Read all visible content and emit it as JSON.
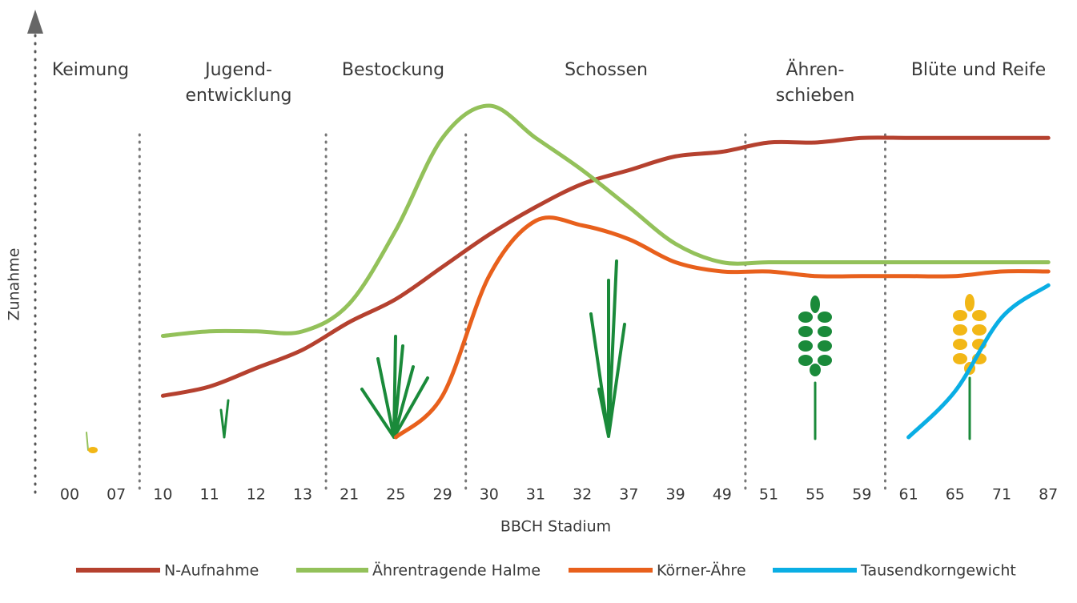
{
  "chart_data": {
    "type": "line",
    "y_label": "Zunahme",
    "x_label": "BBCH Stadium",
    "stages": [
      [
        "Keimung"
      ],
      [
        "Jugend-",
        "entwicklung"
      ],
      [
        "Bestockung"
      ],
      [
        "Schossen"
      ],
      [
        "Ähren-",
        "schieben"
      ],
      [
        "Blüte und Reife"
      ]
    ],
    "categories": [
      "00",
      "07",
      "10",
      "11",
      "12",
      "13",
      "21",
      "25",
      "29",
      "30",
      "31",
      "32",
      "37",
      "39",
      "49",
      "51",
      "55",
      "59",
      "61",
      "65",
      "71",
      "87"
    ],
    "ylim": [
      0,
      100
    ],
    "series": [
      {
        "name": "N-Aufnahme",
        "color": "#b5412f",
        "values": [
          null,
          null,
          21,
          23,
          27,
          31,
          37,
          42,
          49,
          56,
          62,
          67,
          70,
          73,
          74,
          76,
          76,
          77,
          77,
          77,
          77,
          77
        ]
      },
      {
        "name": "Ährentragende Halme",
        "color": "#93c15a",
        "values": [
          null,
          null,
          34,
          35,
          35,
          35,
          41,
          57,
          77,
          84,
          77,
          70,
          62,
          54,
          50,
          50,
          50,
          50,
          50,
          50,
          50,
          50
        ]
      },
      {
        "name": "Körner-Ähre",
        "color": "#e8601c",
        "values": [
          null,
          null,
          null,
          null,
          null,
          null,
          null,
          12,
          21,
          47,
          59,
          58,
          55,
          50,
          48,
          48,
          47,
          47,
          47,
          47,
          48,
          48
        ]
      },
      {
        "name": "Tausendkorngewicht",
        "color": "#0aaee4",
        "values": [
          null,
          null,
          null,
          null,
          null,
          null,
          null,
          null,
          null,
          null,
          null,
          null,
          null,
          null,
          null,
          null,
          null,
          null,
          12,
          22,
          38,
          45
        ]
      }
    ]
  }
}
